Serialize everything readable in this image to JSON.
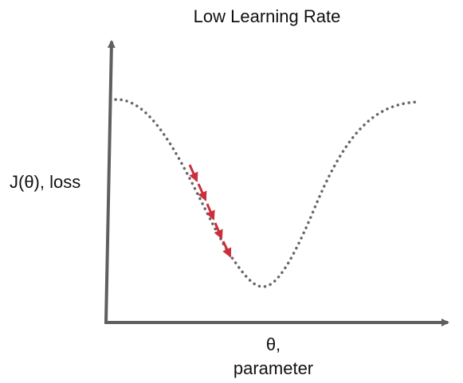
{
  "title": "Low Learning Rate",
  "y_label": "J(θ), loss",
  "x_label": [
    "θ,",
    "parameter"
  ]
}
